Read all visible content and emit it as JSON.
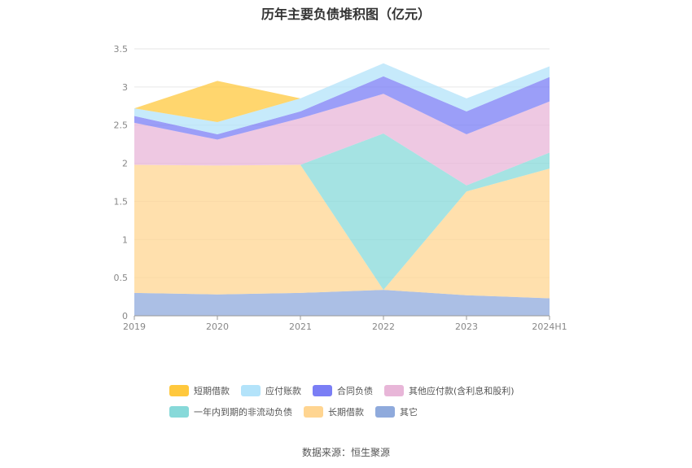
{
  "chart_data": {
    "type": "area",
    "title": "历年主要负债堆积图（亿元）",
    "categories": [
      "2019",
      "2020",
      "2021",
      "2022",
      "2023",
      "2024H1"
    ],
    "ylim": [
      0,
      3.5
    ],
    "yticks": [
      "0",
      "0.5",
      "1",
      "1.5",
      "2",
      "2.5",
      "3",
      "3.5"
    ],
    "stacked": true,
    "grid": true,
    "legend_position": "bottom",
    "series": [
      {
        "name": "其它",
        "color": "#8faadc",
        "values": [
          0.3,
          0.28,
          0.3,
          0.34,
          0.27,
          0.23
        ]
      },
      {
        "name": "长期借款",
        "color": "#ffd591",
        "values": [
          1.68,
          1.69,
          1.68,
          0.0,
          1.36,
          1.7
        ]
      },
      {
        "name": "一年内到期的非流动负债",
        "color": "#87d9d9",
        "values": [
          0.0,
          0.0,
          0.0,
          2.05,
          0.08,
          0.21
        ]
      },
      {
        "name": "其他应付款(含利息和股利)",
        "color": "#e8b6d8",
        "values": [
          0.55,
          0.34,
          0.61,
          0.52,
          0.67,
          0.67
        ]
      },
      {
        "name": "合同负债",
        "color": "#7a7ef5",
        "values": [
          0.09,
          0.07,
          0.09,
          0.23,
          0.3,
          0.32
        ]
      },
      {
        "name": "应付账款",
        "color": "#b3e3fa",
        "values": [
          0.1,
          0.16,
          0.17,
          0.17,
          0.17,
          0.14
        ]
      },
      {
        "name": "短期借款",
        "color": "#ffc83d",
        "values": [
          0.0,
          0.54,
          0.0,
          0.0,
          0.0,
          0.0
        ]
      }
    ]
  },
  "legend": {
    "row1": [
      {
        "label": "短期借款",
        "color": "#ffc83d"
      },
      {
        "label": "应付账款",
        "color": "#b3e3fa"
      },
      {
        "label": "合同负债",
        "color": "#7a7ef5"
      },
      {
        "label": "其他应付款(含利息和股利)",
        "color": "#e8b6d8"
      }
    ],
    "row2": [
      {
        "label": "一年内到期的非流动负债",
        "color": "#87d9d9"
      },
      {
        "label": "长期借款",
        "color": "#ffd591"
      },
      {
        "label": "其它",
        "color": "#8faadc"
      }
    ]
  },
  "source": "数据来源：恒生聚源"
}
